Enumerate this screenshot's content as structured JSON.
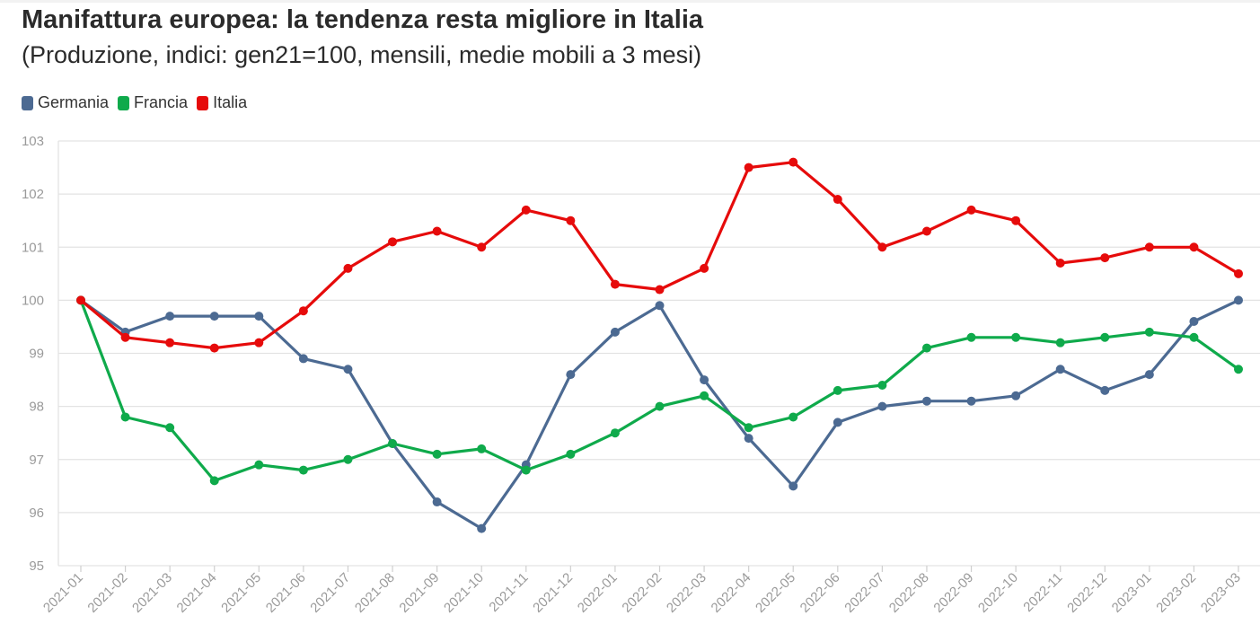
{
  "header": {
    "title": "Manifattura europea: la tendenza resta migliore in Italia",
    "subtitle": "(Produzione, indici: gen21=100, mensili, medie mobili a 3 mesi)"
  },
  "chart_data": {
    "type": "line",
    "title": "Manifattura europea: la tendenza resta migliore in Italia",
    "subtitle": "(Produzione, indici: gen21=100, mensili, medie mobili a 3 mesi)",
    "xlabel": "",
    "ylabel": "",
    "ylim": [
      95,
      103
    ],
    "yticks": [
      "95",
      "96",
      "97",
      "98",
      "99",
      "100",
      "101",
      "102",
      "103"
    ],
    "grid": true,
    "legend_position": "top-left",
    "x": [
      "2021-01",
      "2021-02",
      "2021-03",
      "2021-04",
      "2021-05",
      "2021-06",
      "2021-07",
      "2021-08",
      "2021-09",
      "2021-10",
      "2021-11",
      "2021-12",
      "2022-01",
      "2022-02",
      "2022-03",
      "2022-04",
      "2022-05",
      "2022-06",
      "2022-07",
      "2022-08",
      "2022-09",
      "2022-10",
      "2022-11",
      "2022-12",
      "2023-01",
      "2023-02",
      "2023-03"
    ],
    "series": [
      {
        "name": "Germania",
        "color": "#4c6a92",
        "values": [
          100,
          99.4,
          99.7,
          99.7,
          99.7,
          98.9,
          98.7,
          97.3,
          96.2,
          95.7,
          96.9,
          98.6,
          99.4,
          99.9,
          98.5,
          97.4,
          96.5,
          97.7,
          98.0,
          98.1,
          98.1,
          98.2,
          98.7,
          98.3,
          98.6,
          99.6,
          100
        ]
      },
      {
        "name": "Francia",
        "color": "#0faa4b",
        "values": [
          100,
          97.8,
          97.6,
          96.6,
          96.9,
          96.8,
          97.0,
          97.3,
          97.1,
          97.2,
          96.8,
          97.1,
          97.5,
          98.0,
          98.2,
          97.6,
          97.8,
          98.3,
          98.4,
          99.1,
          99.3,
          99.3,
          99.2,
          99.3,
          99.4,
          99.3,
          98.7
        ]
      },
      {
        "name": "Italia",
        "color": "#e60b0b",
        "values": [
          100,
          99.3,
          99.2,
          99.1,
          99.2,
          99.8,
          100.6,
          101.1,
          101.3,
          101.0,
          101.7,
          101.5,
          100.3,
          100.2,
          100.6,
          102.5,
          102.6,
          101.9,
          101.0,
          101.3,
          101.7,
          101.5,
          100.7,
          100.8,
          101.0,
          101.0,
          100.5
        ]
      }
    ]
  }
}
